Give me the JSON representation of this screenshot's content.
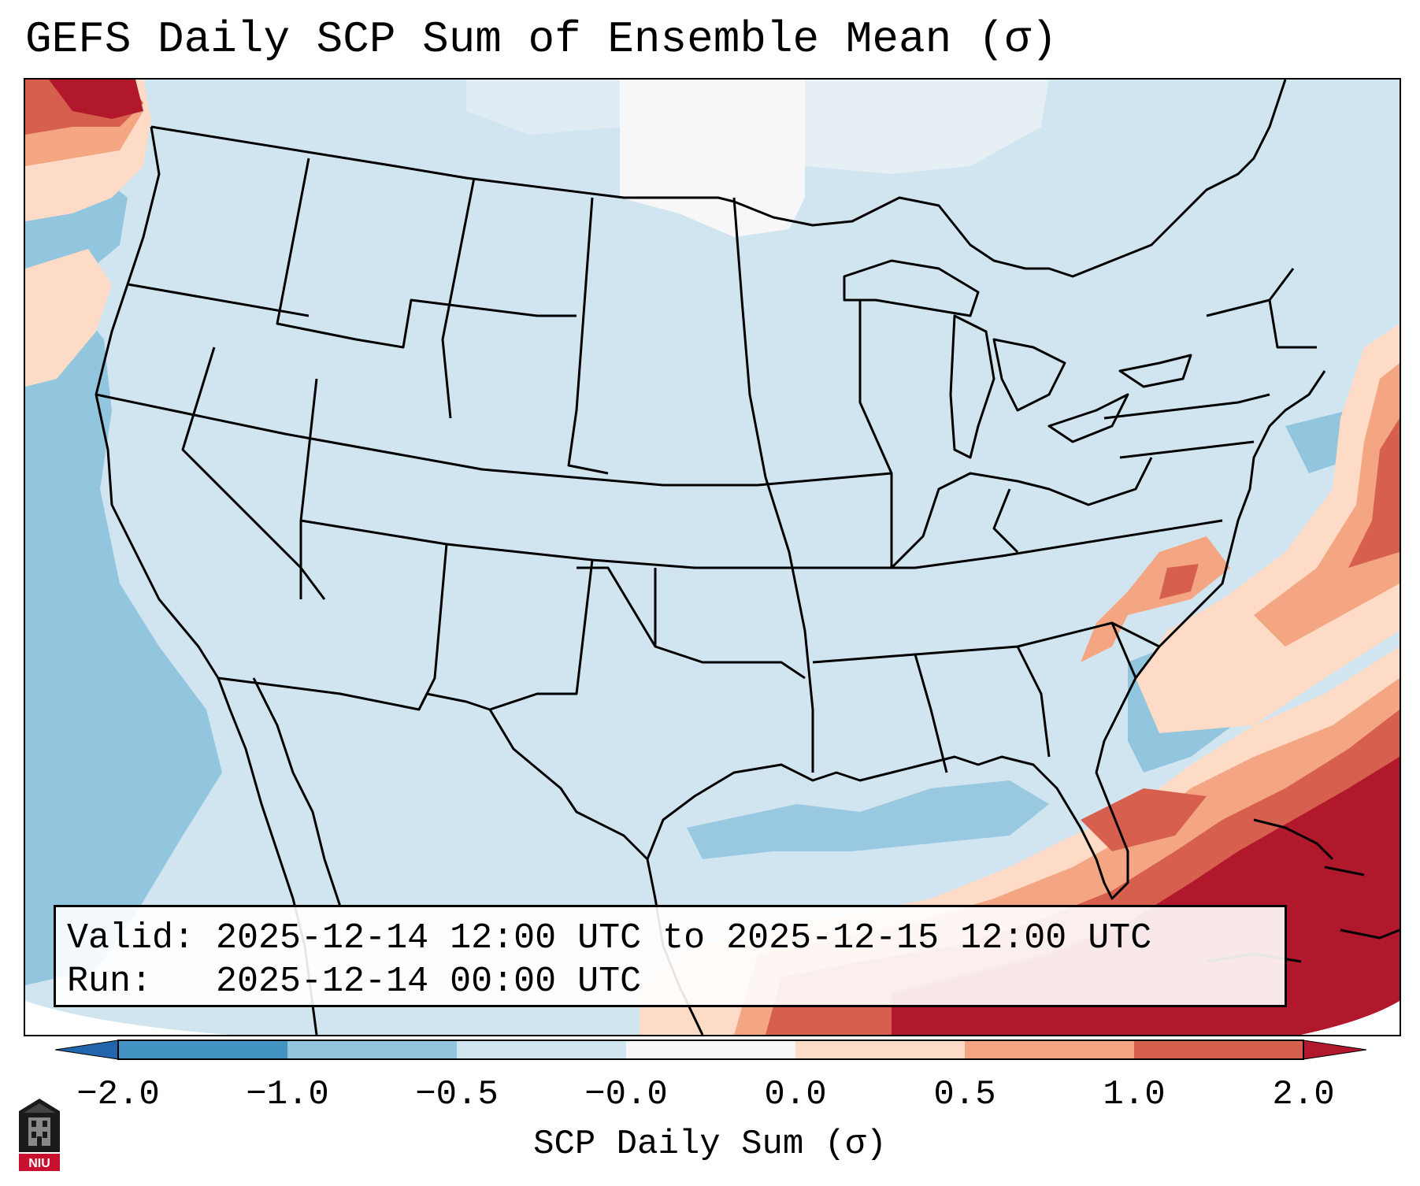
{
  "title": "GEFS Daily SCP Sum of Ensemble Mean (σ)",
  "info": {
    "valid_line": "Valid: 2025-12-14 12:00 UTC to 2025-12-15 12:00 UTC",
    "run_line": "Run:   2025-12-14 00:00 UTC"
  },
  "colorbar": {
    "label": "SCP Daily Sum (σ)",
    "ticks": [
      "−2.0",
      "−1.0",
      "−0.5",
      "−0.0",
      "0.0",
      "0.5",
      "1.0",
      "2.0"
    ],
    "colors": [
      "#4393c3",
      "#92c5de",
      "#d1e5f0",
      "#f7f7f7",
      "#fddbc7",
      "#f4a582",
      "#d6604d",
      "#b2182b"
    ],
    "extend_low_color": "#2166ac",
    "extend_high_color": "#b2182b"
  },
  "logo": {
    "text": "NIU",
    "accent_color": "#c8102e"
  }
}
